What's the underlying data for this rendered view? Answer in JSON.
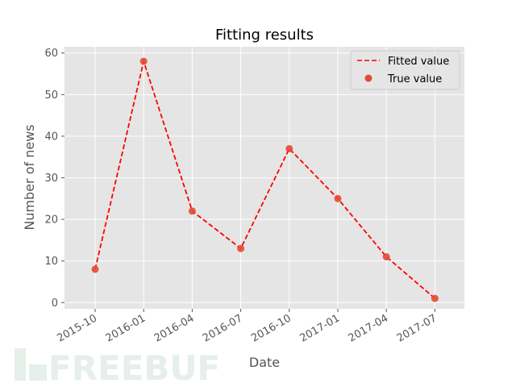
{
  "chart_data": {
    "type": "line",
    "title": "Fitting results",
    "xlabel": "Date",
    "ylabel": "Number of news",
    "x": [
      "2015-10",
      "2016-01",
      "2016-04",
      "2016-07",
      "2016-10",
      "2017-01",
      "2017-04",
      "2017-07"
    ],
    "series": [
      {
        "name": "Fitted value",
        "kind": "line",
        "style": "dashed",
        "color": "#ff0000",
        "values": [
          8,
          58,
          22,
          13,
          37,
          25,
          11,
          1
        ]
      },
      {
        "name": "True value",
        "kind": "scatter",
        "color": "#e24a33",
        "values": [
          8,
          58,
          22,
          13,
          37,
          25,
          11,
          1
        ]
      }
    ],
    "xticks": [
      "2015-10",
      "2016-01",
      "2016-04",
      "2016-07",
      "2016-10",
      "2017-01",
      "2017-04",
      "2017-07"
    ],
    "yticks": [
      0,
      10,
      20,
      30,
      40,
      50,
      60
    ],
    "ylim": [
      -1.5,
      61.5
    ],
    "grid": true,
    "legend_position": "top-right",
    "background_color": "#e5e5e5",
    "grid_color": "#ffffff",
    "text_color": "#555555"
  },
  "watermark": {
    "text": "FREEBUF",
    "color": "#e6efe9"
  }
}
